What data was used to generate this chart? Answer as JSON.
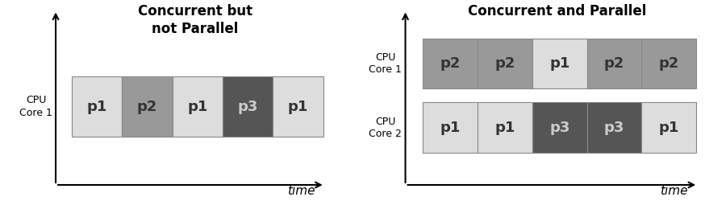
{
  "title_left": "Concurrent but\nnot Parallel",
  "title_right": "Concurrent and Parallel",
  "title_color": "#000000",
  "title_fontsize": 12,
  "label_fontsize": 9,
  "block_label_fontsize": 13,
  "axis_label_fontsize": 11,
  "colors": {
    "p1": "#dddddd",
    "p2": "#999999",
    "p3": "#555555"
  },
  "text_colors": {
    "p1": "#333333",
    "p2": "#333333",
    "p3": "#cccccc"
  },
  "left_row": [
    "p1",
    "p2",
    "p1",
    "p3",
    "p1"
  ],
  "right_row1": [
    "p2",
    "p2",
    "p1",
    "p2",
    "p2"
  ],
  "right_row2": [
    "p1",
    "p1",
    "p3",
    "p3",
    "p1"
  ],
  "background": "#ffffff",
  "edge_color": "#888888",
  "arrow_color": "#000000"
}
